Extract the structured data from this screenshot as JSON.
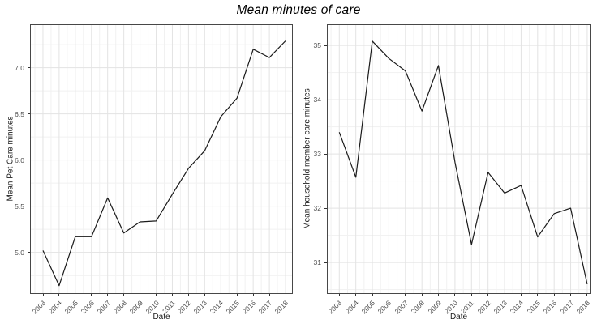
{
  "title": "Mean minutes of care",
  "style": {
    "background": "#ffffff",
    "grid_major": "#e3e3e3",
    "grid_minor": "#f1f1f1",
    "panel_border": "#474747",
    "tick_mark_color": "#333333",
    "tick_label_color": "#4d4d4d",
    "axis_title_color": "#1a1a1a",
    "line_color": "#1a1a1a"
  },
  "chart_data": [
    {
      "type": "line",
      "panel": "left",
      "xlabel": "Date",
      "ylabel": "Mean Pet Care minutes",
      "x": [
        2003,
        2004,
        2005,
        2006,
        2007,
        2008,
        2009,
        2010,
        2011,
        2012,
        2013,
        2014,
        2015,
        2016,
        2017,
        2018
      ],
      "x_tick_labels": [
        "2003",
        "2004",
        "2005",
        "2006",
        "2007",
        "2008",
        "2009",
        "2010",
        "2011",
        "2012",
        "2013",
        "2014",
        "2015",
        "2016",
        "2017",
        "2018"
      ],
      "values": [
        5.02,
        4.64,
        5.17,
        5.17,
        5.59,
        5.21,
        5.33,
        5.34,
        5.63,
        5.91,
        6.1,
        6.47,
        6.67,
        7.2,
        7.11,
        7.29
      ],
      "yticks": [
        5.0,
        5.5,
        6.0,
        6.5,
        7.0
      ],
      "ytick_labels": [
        "5.0",
        "5.5",
        "6.0",
        "6.5",
        "7.0"
      ],
      "ylim": [
        4.55,
        7.47
      ],
      "xlim": [
        2002.2,
        2018.45
      ],
      "grid": "major+minor",
      "legend": "none",
      "line_color": "#1a1a1a"
    },
    {
      "type": "line",
      "panel": "right",
      "xlabel": "Date",
      "ylabel": "Mean household member care minutes",
      "x": [
        2003,
        2004,
        2005,
        2006,
        2007,
        2008,
        2009,
        2010,
        2011,
        2012,
        2013,
        2014,
        2015,
        2016,
        2017,
        2018
      ],
      "x_tick_labels": [
        "2003",
        "2004",
        "2005",
        "2006",
        "2007",
        "2008",
        "2009",
        "2010",
        "2011",
        "2012",
        "2013",
        "2014",
        "2015",
        "2016",
        "2017",
        "2018"
      ],
      "values": [
        33.4,
        32.57,
        35.08,
        34.76,
        34.53,
        33.79,
        34.63,
        32.85,
        31.33,
        32.66,
        32.28,
        32.42,
        31.47,
        31.9,
        32.0,
        30.6
      ],
      "yticks": [
        31,
        32,
        33,
        34,
        35
      ],
      "ytick_labels": [
        "31",
        "32",
        "33",
        "34",
        "35"
      ],
      "ylim": [
        30.42,
        35.39
      ],
      "xlim": [
        2002.25,
        2018.2
      ],
      "grid": "major+minor",
      "legend": "none",
      "line_color": "#1a1a1a"
    }
  ]
}
